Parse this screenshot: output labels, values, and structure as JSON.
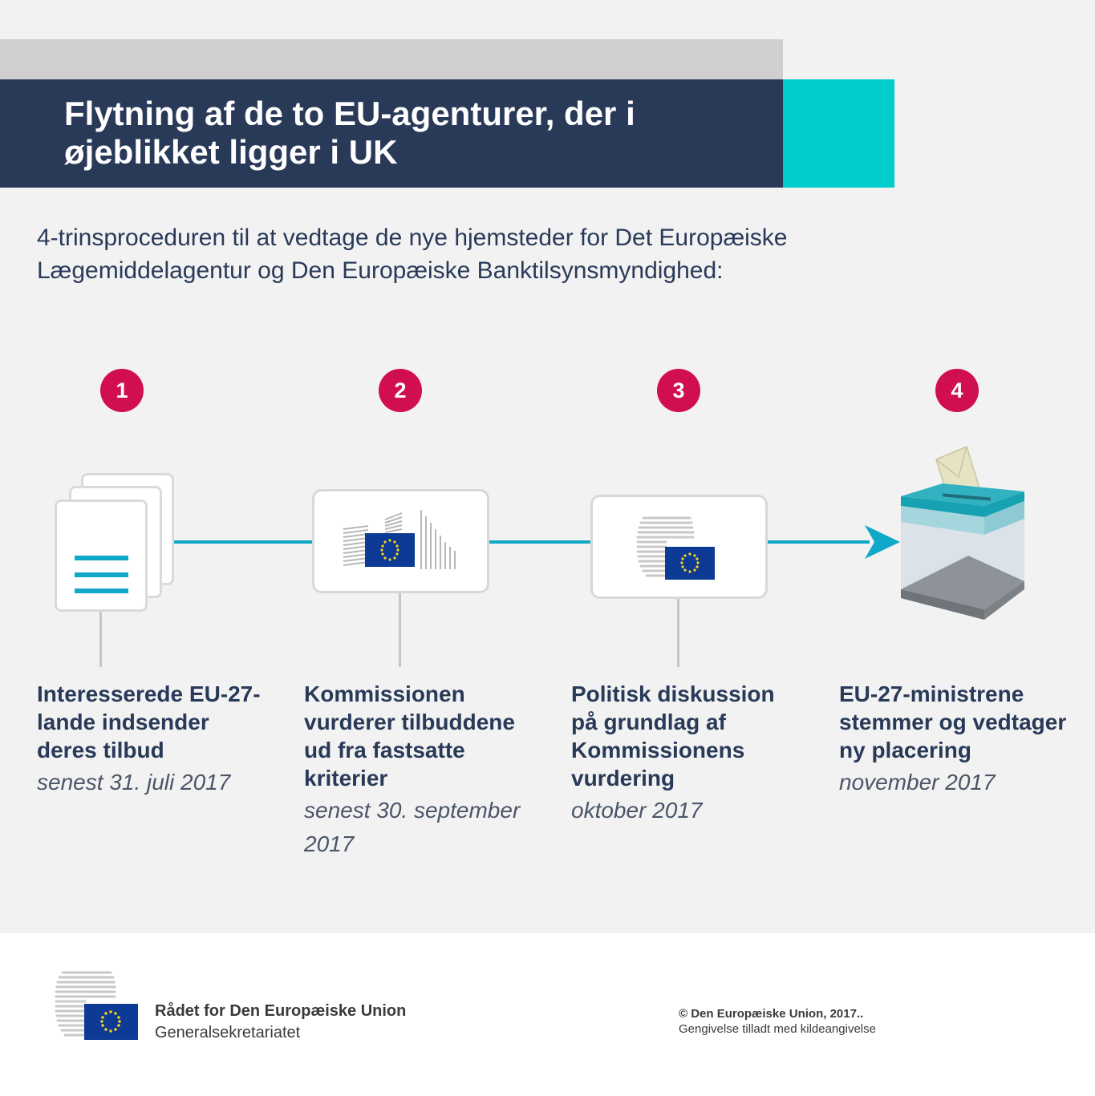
{
  "header": {
    "title": "Flytning af de to EU-agenturer, der i øjeblikket ligger i UK",
    "subtitle": "4-trinsproceduren til at vedtage de nye hjemsteder for Det Europæiske Lægemiddelagentur og Den Europæiske Banktilsynsmyndighed:"
  },
  "steps": [
    {
      "number": "1",
      "text": "Interesserede EU-27-lande indsender deres tilbud",
      "date": "senest 31. juli 2017"
    },
    {
      "number": "2",
      "text": "Kommissionen vurderer tilbuddene ud fra fastsatte kriterier",
      "date": "senest 30. september 2017"
    },
    {
      "number": "3",
      "text": "Politisk diskussion på grundlag af Kommissionens vurdering",
      "date": "oktober 2017"
    },
    {
      "number": "4",
      "text": "EU-27-ministrene stemmer og vedtager ny placering",
      "date": "november 2017"
    }
  ],
  "icons": [
    "document-stack-icon",
    "commission-building-icon",
    "council-building-icon",
    "ballot-box-icon"
  ],
  "colors": {
    "navy": "#293a59",
    "teal": "#01cccc",
    "magenta": "#d20e52",
    "line": "#10a8c8",
    "eu_blue": "#0c3a94",
    "eu_gold": "#ffd617"
  },
  "footer": {
    "org_name": "Rådet for Den Europæiske Union",
    "org_sub": "Generalsekretariatet",
    "copyright": "© Den Europæiske Union, 2017..",
    "reproduction": "Gengivelse tilladt med kildeangivelse"
  }
}
